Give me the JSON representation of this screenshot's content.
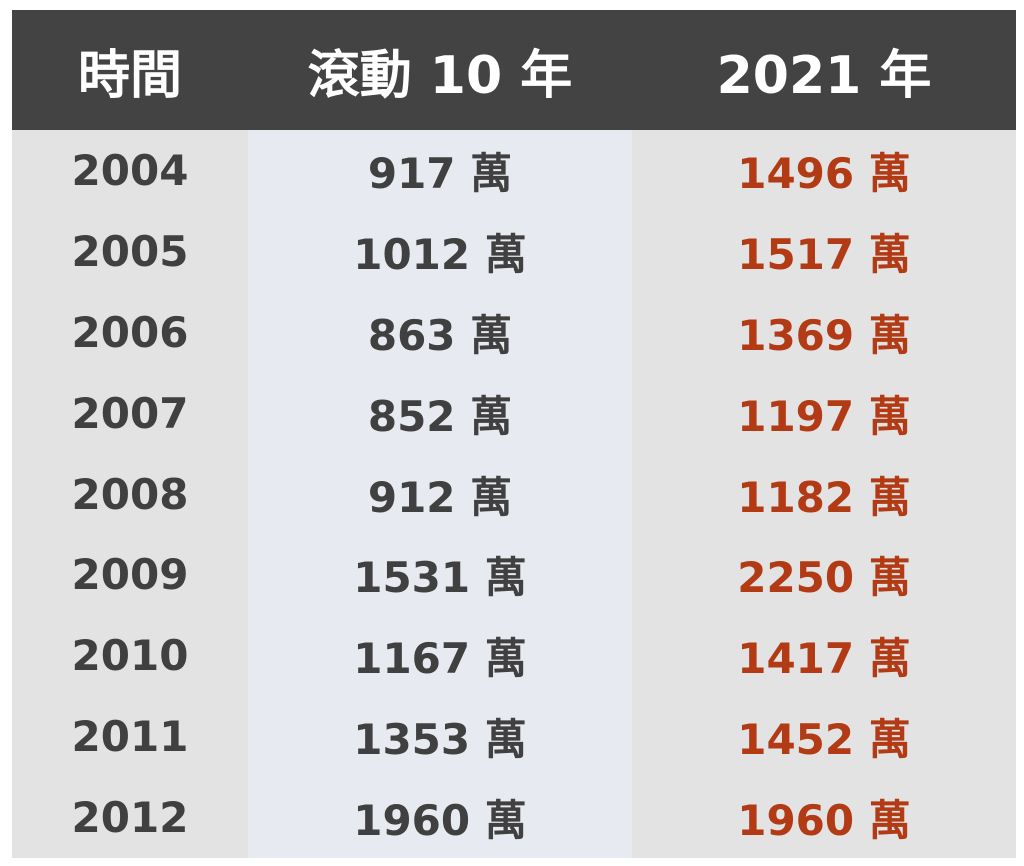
{
  "headers": {
    "time": "時間",
    "rolling": "滾動 10 年",
    "year2021": "2021 年"
  },
  "rows": [
    {
      "year": "2004",
      "rolling": "917 萬",
      "year2021": "1496 萬"
    },
    {
      "year": "2005",
      "rolling": "1012 萬",
      "year2021": "1517 萬"
    },
    {
      "year": "2006",
      "rolling": "863 萬",
      "year2021": "1369 萬"
    },
    {
      "year": "2007",
      "rolling": "852 萬",
      "year2021": "1197 萬"
    },
    {
      "year": "2008",
      "rolling": "912 萬",
      "year2021": "1182 萬"
    },
    {
      "year": "2009",
      "rolling": "1531 萬",
      "year2021": "2250 萬"
    },
    {
      "year": "2010",
      "rolling": "1167 萬",
      "year2021": "1417 萬"
    },
    {
      "year": "2011",
      "rolling": "1353 萬",
      "year2021": "1452 萬"
    },
    {
      "year": "2012",
      "rolling": "1960 萬",
      "year2021": "1960 萬"
    }
  ],
  "colors": {
    "header_bg": "#434343",
    "header_text": "#ffffff",
    "body_text": "#404040",
    "highlight_text": "#b23a14",
    "col1_bg": "#e3e3e3",
    "col2_bg": "#e8eaf1",
    "col3_bg": "#e3e3e3"
  }
}
